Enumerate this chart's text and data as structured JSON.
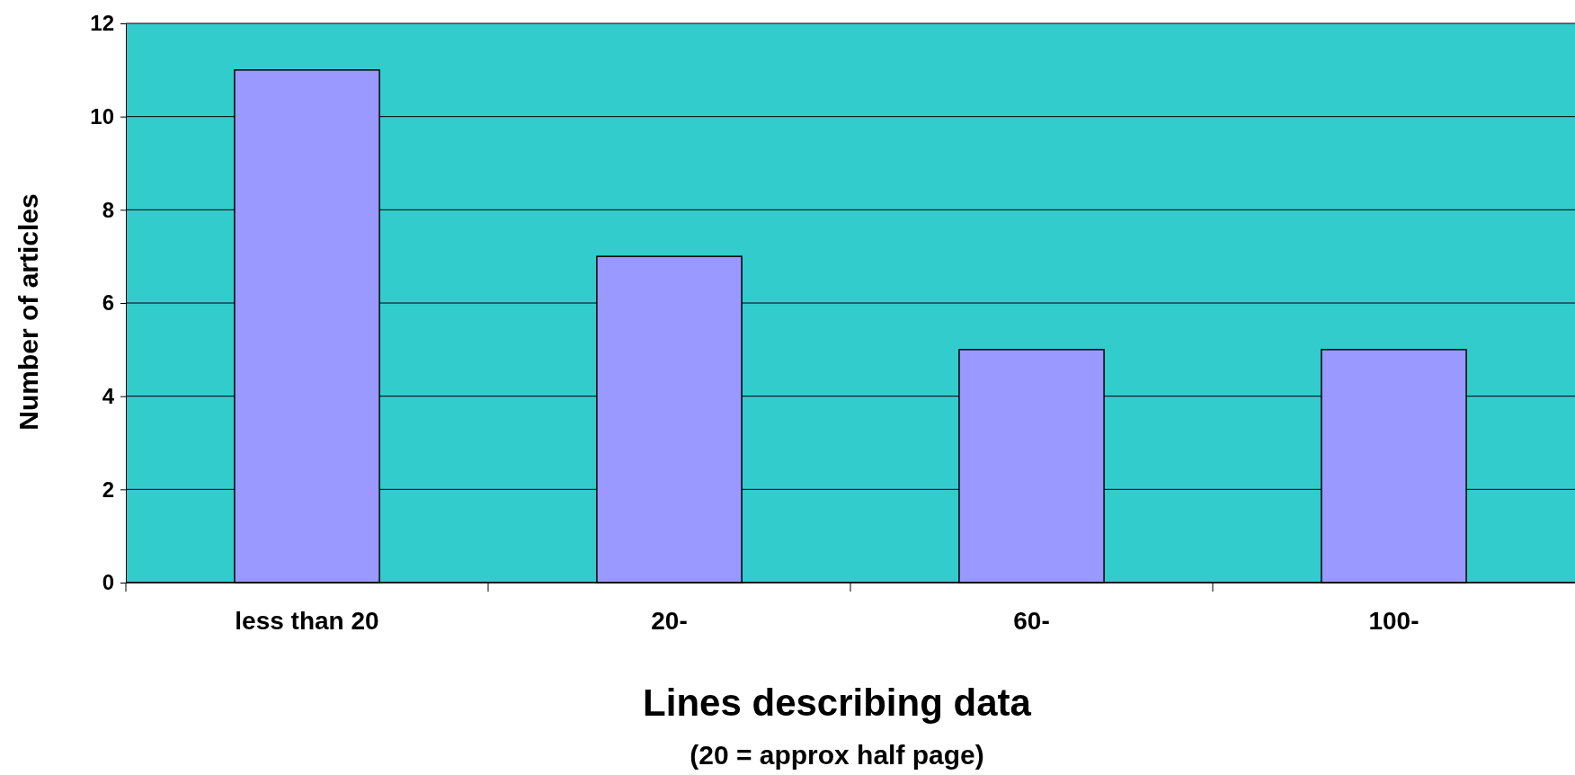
{
  "chart_data": {
    "type": "bar",
    "xlabel": "Lines describing data",
    "ylabel": "Number of articles",
    "annotations": [
      "(20 = approx half page)"
    ],
    "categories": [
      "less than 20",
      "20-",
      "60-",
      "100-"
    ],
    "values": [
      11,
      7,
      5,
      5
    ],
    "color": "#9999ff",
    "ylim": [
      0,
      12
    ],
    "yticks": [
      0,
      2,
      4,
      6,
      8,
      10,
      12
    ],
    "grid": "y"
  }
}
